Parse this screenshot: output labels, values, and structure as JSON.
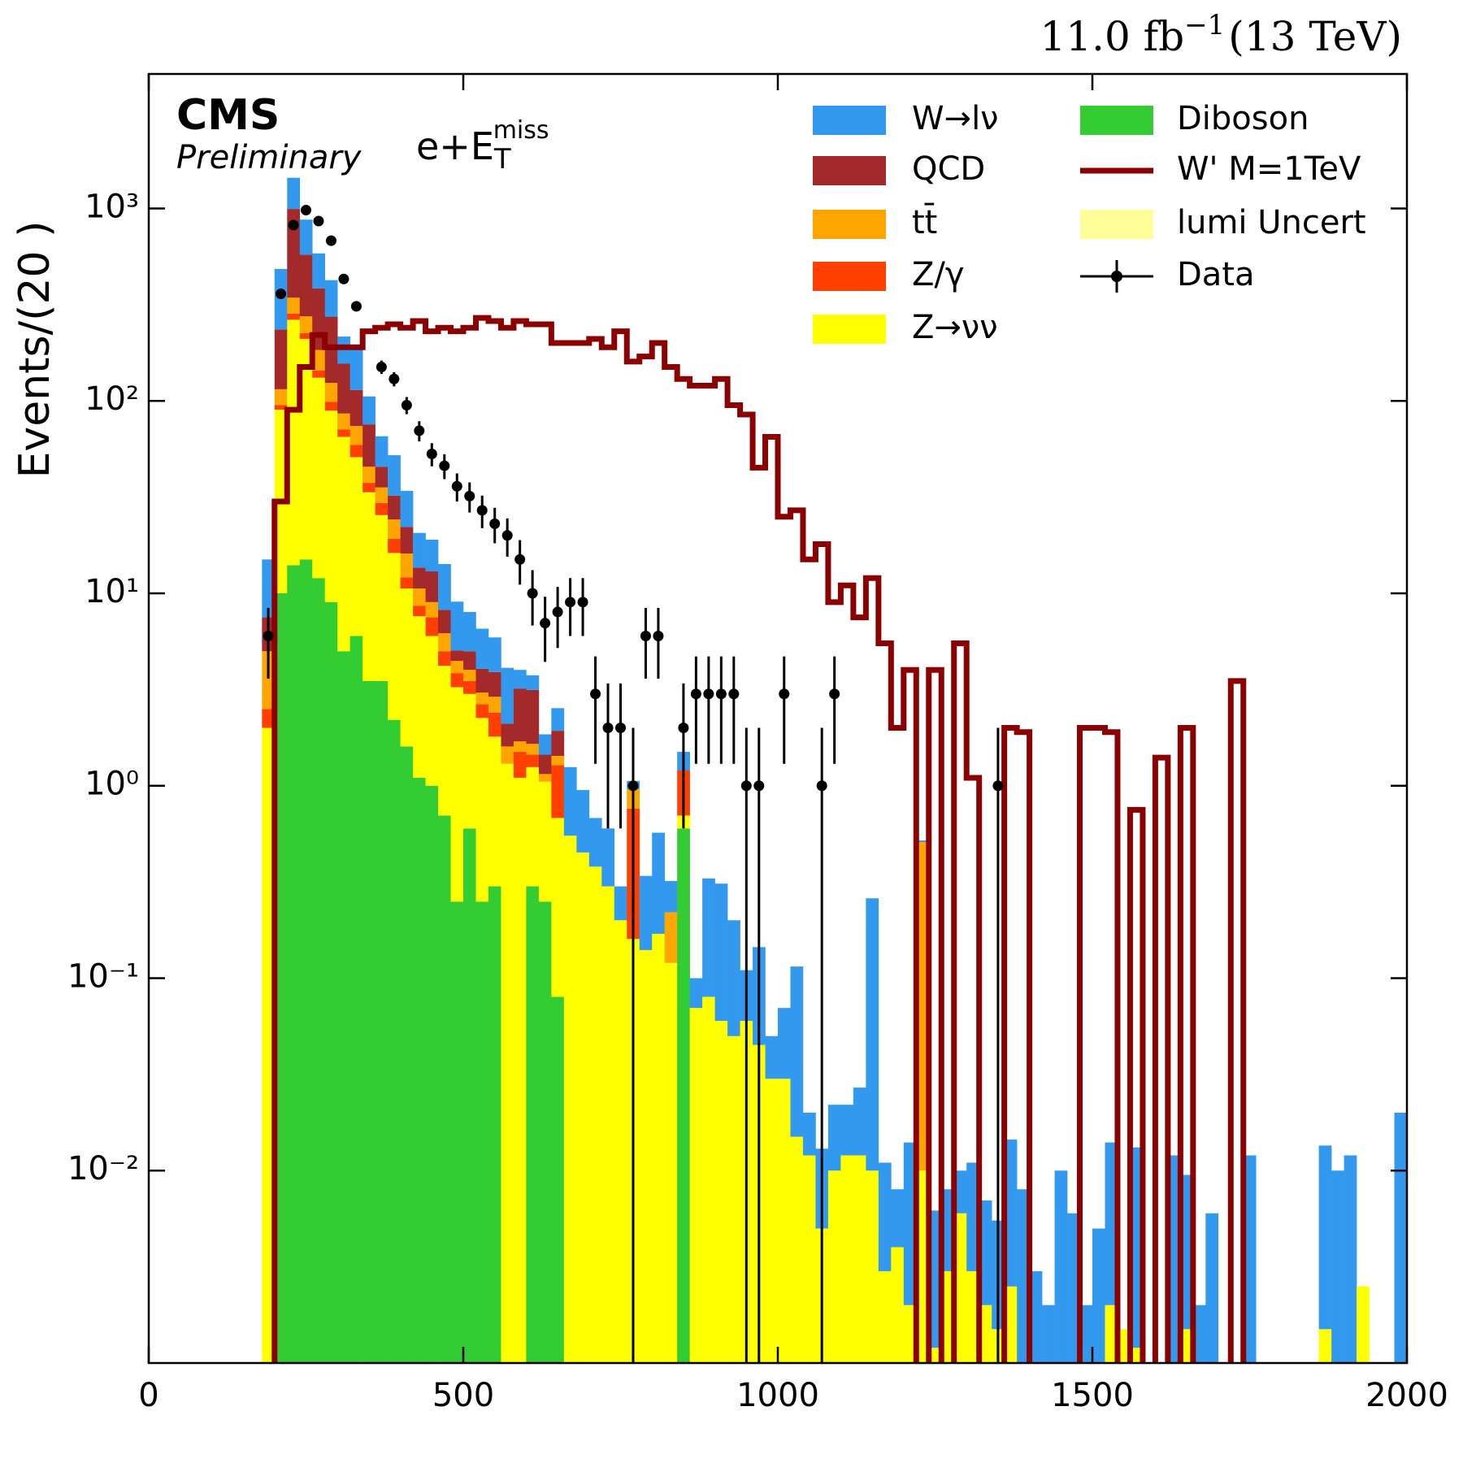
{
  "chart_data": {
    "type": "stacked-histogram",
    "lumi": {
      "text": "11.0 fb",
      "sup": "−1",
      "post": "(13 TeV)"
    },
    "experiment": "CMS",
    "status": "Preliminary",
    "channel": {
      "text": "e+E",
      "sub": "T",
      "sup": "miss"
    },
    "y_label": "Events/(20 )",
    "log_y": true,
    "xlim": [
      0,
      2000
    ],
    "ylim": [
      0.001,
      5000
    ],
    "xticks": [
      0,
      500,
      1000,
      1500,
      2000
    ],
    "yticks": [
      {
        "value": 0.01,
        "label": "10⁻²"
      },
      {
        "value": 0.1,
        "label": "10⁻¹"
      },
      {
        "value": 1,
        "label": "10⁰"
      },
      {
        "value": 10,
        "label": "10¹"
      },
      {
        "value": 100,
        "label": "10²"
      },
      {
        "value": 1000,
        "label": "10³"
      }
    ],
    "bins": [
      180,
      200,
      220,
      240,
      260,
      280,
      300,
      320,
      340,
      360,
      380,
      400,
      420,
      440,
      460,
      480,
      500,
      520,
      540,
      560,
      580,
      600,
      620,
      640,
      660,
      680,
      700,
      720,
      740,
      760,
      780,
      800,
      820,
      840,
      860,
      880,
      900,
      920,
      940,
      960,
      980,
      1000,
      1020,
      1040,
      1060,
      1080,
      1100,
      1120,
      1140,
      1160,
      1180,
      1200,
      1220,
      1240,
      1260,
      1280,
      1300,
      1320,
      1340,
      1360,
      1380,
      1400,
      1420,
      1440,
      1460,
      1480,
      1500,
      1520,
      1540,
      1560,
      1580,
      1600,
      1620,
      1640,
      1660,
      1680,
      1700,
      1720,
      1740,
      1760,
      1780,
      1800,
      1820,
      1840,
      1860,
      1880,
      1900,
      1920,
      1940,
      1960,
      1980,
      2000
    ],
    "series": [
      {
        "name": "Diboson",
        "color": "#33cc33",
        "values": [
          0,
          10,
          14,
          15,
          12,
          9,
          5,
          6,
          3.5,
          3.5,
          2.2,
          1.6,
          1.1,
          1.0,
          0.7,
          0.25,
          0.6,
          0.25,
          0.3,
          0,
          0,
          0.3,
          0.25,
          0.08,
          0,
          0,
          0,
          0,
          0,
          0,
          0,
          0,
          0,
          0.6,
          0,
          0,
          0,
          0,
          0,
          0,
          0,
          0,
          0,
          0,
          0,
          0,
          0,
          0,
          0,
          0,
          0,
          0,
          0,
          0,
          0,
          0,
          0,
          0,
          0,
          0,
          0,
          0,
          0,
          0,
          0,
          0,
          0,
          0,
          0,
          0,
          0,
          0,
          0,
          0,
          0,
          0,
          0,
          0,
          0,
          0,
          0,
          0,
          0,
          0,
          0,
          0,
          0,
          0,
          0,
          0,
          0
        ]
      },
      {
        "name": "Z→νν",
        "color": "#ffff00",
        "values": [
          2,
          80,
          250,
          195,
          120,
          80,
          60,
          45,
          30,
          22,
          14,
          9,
          6.5,
          5,
          3.5,
          3,
          2.4,
          2,
          1.5,
          1.3,
          1.1,
          0.95,
          0.8,
          0.6,
          0.55,
          0.45,
          0.38,
          0.3,
          0.2,
          0.16,
          0.14,
          0.17,
          0.12,
          0.1,
          0.07,
          0.08,
          0.06,
          0.05,
          0.06,
          0.045,
          0.03,
          0.03,
          0.015,
          0.012,
          0.005,
          0.01,
          0.012,
          0.012,
          0.01,
          0.003,
          0.004,
          0.002,
          0.01,
          0.0012,
          0.003,
          0.006,
          0.003,
          0.002,
          0.0015,
          0.0025,
          0,
          0,
          0,
          0,
          0,
          0,
          0,
          0.002,
          0.0015,
          0.0012,
          0,
          0,
          0,
          0.0015,
          0,
          0,
          0,
          0,
          0,
          0,
          0,
          0,
          0,
          0,
          0.0015,
          0,
          0,
          0.0025,
          0,
          0,
          0
        ]
      },
      {
        "name": "Z/γ",
        "color": "#ff4000",
        "values": [
          0.5,
          5,
          20,
          15,
          12,
          10,
          6,
          8,
          4,
          4,
          3,
          1.5,
          1,
          1.5,
          0.8,
          0.6,
          0.5,
          0.4,
          0.6,
          0,
          0.4,
          0.2,
          0,
          0.6,
          0,
          0,
          0,
          0,
          0,
          0.6,
          0,
          0,
          0,
          0.5,
          0,
          0,
          0,
          0,
          0,
          0,
          0,
          0,
          0,
          0,
          0,
          0,
          0,
          0,
          0,
          0,
          0,
          0,
          0,
          0,
          0,
          0,
          0,
          0,
          0,
          0,
          0,
          0,
          0,
          0,
          0,
          0,
          0,
          0,
          0,
          0,
          0,
          0,
          0,
          0,
          0,
          0,
          0,
          0,
          0,
          0,
          0,
          0,
          0,
          0,
          0,
          0,
          0,
          0,
          0,
          0,
          0
        ]
      },
      {
        "name": "tt̄",
        "color": "#ffa500",
        "values": [
          2.5,
          20,
          60,
          50,
          40,
          25,
          15,
          15,
          8,
          6,
          5,
          4,
          2,
          1.5,
          1.2,
          0.6,
          0.5,
          0.4,
          0.5,
          0.3,
          0.2,
          0.2,
          0.1,
          0.15,
          0,
          0,
          0,
          0,
          0,
          0.2,
          0,
          0,
          0.1,
          0,
          0,
          0,
          0,
          0,
          0,
          0,
          0,
          0,
          0,
          0,
          0,
          0,
          0,
          0,
          0,
          0,
          0,
          0,
          0.5,
          0,
          0,
          0,
          0,
          0,
          0,
          0,
          0,
          0,
          0,
          0,
          0,
          0,
          0,
          0,
          0,
          0,
          0,
          0,
          0,
          0,
          0,
          0,
          0,
          0,
          0,
          0,
          0,
          0,
          0,
          0,
          0,
          0,
          0,
          0,
          0,
          0,
          0
        ]
      },
      {
        "name": "QCD",
        "color": "#a3292a",
        "values": [
          2.5,
          120,
          650,
          300,
          200,
          150,
          70,
          40,
          30,
          10,
          8,
          6,
          3,
          4,
          2,
          0.6,
          1,
          1,
          1,
          0.5,
          1.5,
          1.5,
          0.3,
          0.5,
          0,
          0,
          0,
          0,
          0,
          0,
          0,
          0,
          0,
          0,
          0,
          0,
          0,
          0,
          0,
          0,
          0,
          0,
          0,
          0,
          0,
          0,
          0,
          0,
          0,
          0,
          0,
          0,
          0,
          0,
          0,
          0,
          0,
          0,
          0,
          0,
          0,
          0,
          0,
          0,
          0,
          0,
          0,
          0,
          0,
          0,
          0,
          0,
          0,
          0,
          0,
          0,
          0,
          0,
          0,
          0,
          0,
          0,
          0,
          0,
          0,
          0,
          0,
          0,
          0,
          0,
          0
        ]
      },
      {
        "name": "W→lν",
        "color": "#3399ee",
        "values": [
          7.5,
          250,
          450,
          300,
          200,
          150,
          60,
          70,
          30,
          20,
          20,
          12,
          7,
          6,
          6,
          4,
          3,
          2.5,
          2,
          2,
          0.8,
          0.6,
          0.4,
          0.6,
          0.7,
          0.5,
          0.3,
          0.3,
          0.1,
          0.1,
          0.2,
          0.4,
          0.1,
          0.3,
          0.03,
          0.25,
          0.25,
          0.15,
          0.05,
          0.1,
          0.02,
          0.04,
          0.1,
          0.008,
          0.008,
          0.012,
          0.01,
          0.015,
          0.25,
          0.008,
          0.004,
          0.012,
          0.01,
          0.005,
          0.005,
          0.004,
          0.008,
          0.005,
          0.004,
          0.012,
          0.008,
          0.003,
          0.002,
          0.01,
          0.006,
          0.002,
          0.005,
          0.012,
          0,
          0.012,
          0,
          0,
          0.012,
          0.008,
          0.002,
          0.006,
          0,
          0,
          0.012,
          0,
          0,
          0,
          0,
          0,
          0.012,
          0.01,
          0.012,
          0,
          0,
          0,
          0.02
        ]
      }
    ],
    "signal": {
      "name": "W' M=1TeV",
      "color": "#8b0000",
      "values": [
        0,
        30,
        90,
        150,
        220,
        190,
        190,
        190,
        230,
        240,
        250,
        240,
        260,
        230,
        240,
        230,
        240,
        270,
        260,
        240,
        260,
        250,
        250,
        200,
        200,
        200,
        210,
        190,
        230,
        160,
        170,
        200,
        150,
        130,
        120,
        120,
        130,
        95,
        85,
        45,
        65,
        25,
        27,
        15,
        18,
        9,
        11,
        7.5,
        12,
        5.5,
        2,
        4,
        0,
        4,
        0,
        5.5,
        1.1,
        0,
        0,
        2,
        1.9,
        0,
        0,
        0,
        0,
        2,
        2,
        1.9,
        0,
        0.75,
        0,
        1.4,
        0,
        2,
        0,
        0,
        0,
        3.5,
        0,
        0,
        0,
        0,
        0,
        0,
        0,
        0,
        0,
        0,
        0,
        0,
        0
      ]
    },
    "uncertainty": {
      "name": "lumi Uncert",
      "color": "#ffff99"
    },
    "data": {
      "name": "Data",
      "color": "#000000",
      "x": [
        190,
        210,
        230,
        250,
        270,
        290,
        310,
        330,
        370,
        390,
        410,
        430,
        450,
        470,
        490,
        510,
        530,
        550,
        570,
        590,
        610,
        630,
        650,
        670,
        690,
        710,
        730,
        750,
        770,
        790,
        810,
        850,
        870,
        890,
        910,
        930,
        950,
        970,
        1010,
        1070,
        1090,
        1350
      ],
      "values": [
        6,
        360,
        820,
        980,
        860,
        680,
        430,
        310,
        150,
        130,
        95,
        70,
        53,
        46,
        36,
        32,
        27,
        23,
        20,
        15,
        10,
        7,
        8,
        9,
        9,
        3,
        2,
        2,
        1,
        6,
        6,
        2,
        3,
        3,
        3,
        3,
        1,
        1,
        3,
        1,
        3,
        1
      ],
      "errors": [
        2.4,
        19,
        29,
        31,
        29,
        26,
        21,
        18,
        12,
        11,
        9.7,
        8.4,
        7.3,
        6.8,
        6,
        5.7,
        5.2,
        4.8,
        4.5,
        3.9,
        3.2,
        2.6,
        2.8,
        3,
        3,
        1.7,
        1.4,
        1.4,
        1,
        2.4,
        2.4,
        1.4,
        1.7,
        1.7,
        1.7,
        1.7,
        1,
        1,
        1.7,
        1,
        1.7,
        1
      ]
    }
  }
}
